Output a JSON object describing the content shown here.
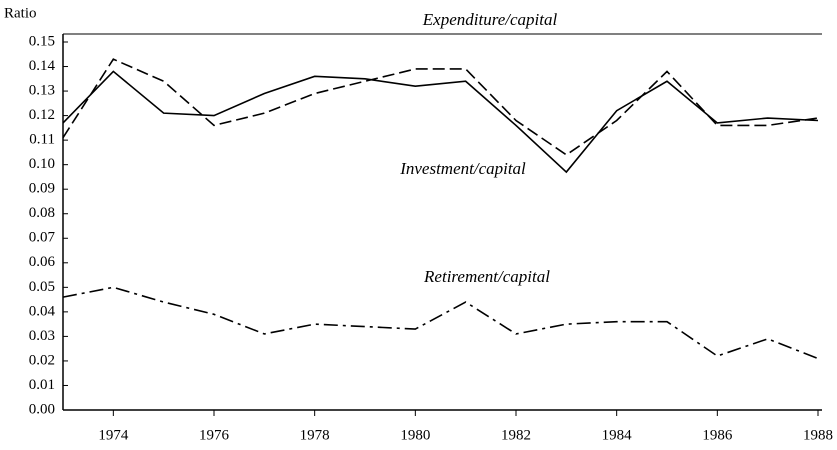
{
  "chart_data": {
    "type": "line",
    "y_axis_label": "Ratio",
    "x": [
      1973,
      1974,
      1975,
      1976,
      1977,
      1978,
      1979,
      1980,
      1981,
      1982,
      1983,
      1984,
      1985,
      1986,
      1987,
      1988
    ],
    "series": [
      {
        "name": "Expenditure/capital",
        "color": "#000000",
        "dash": "dashed",
        "values": [
          0.111,
          0.143,
          0.134,
          0.116,
          0.121,
          0.129,
          0.134,
          0.139,
          0.139,
          0.118,
          0.104,
          0.118,
          0.138,
          0.116,
          0.116,
          0.119
        ]
      },
      {
        "name": "Investment/capital",
        "color": "#000000",
        "dash": "solid",
        "values": [
          0.117,
          0.138,
          0.121,
          0.12,
          0.129,
          0.136,
          0.135,
          0.132,
          0.134,
          0.116,
          0.097,
          0.122,
          0.134,
          0.117,
          0.119,
          0.118
        ]
      },
      {
        "name": "Retirement/capital",
        "color": "#000000",
        "dash": "dashdot",
        "values": [
          0.046,
          0.05,
          0.044,
          0.039,
          0.031,
          0.035,
          0.034,
          0.033,
          0.044,
          0.031,
          0.035,
          0.036,
          0.036,
          0.022,
          0.029,
          0.021
        ]
      }
    ],
    "xlim": [
      1973,
      1988
    ],
    "xticks": [
      1974,
      1976,
      1978,
      1980,
      1982,
      1984,
      1986,
      1988
    ],
    "ylim": [
      0,
      0.15
    ],
    "yticks": [
      {
        "value": 0,
        "label": "0.00"
      },
      0.01,
      0.02,
      0.03,
      0.04,
      0.05,
      0.06,
      0.07,
      0.08,
      0.09,
      {
        "value": 0.1,
        "label": "0.10"
      },
      0.11,
      0.12,
      0.13,
      0.14,
      0.15
    ],
    "grid": false
  }
}
